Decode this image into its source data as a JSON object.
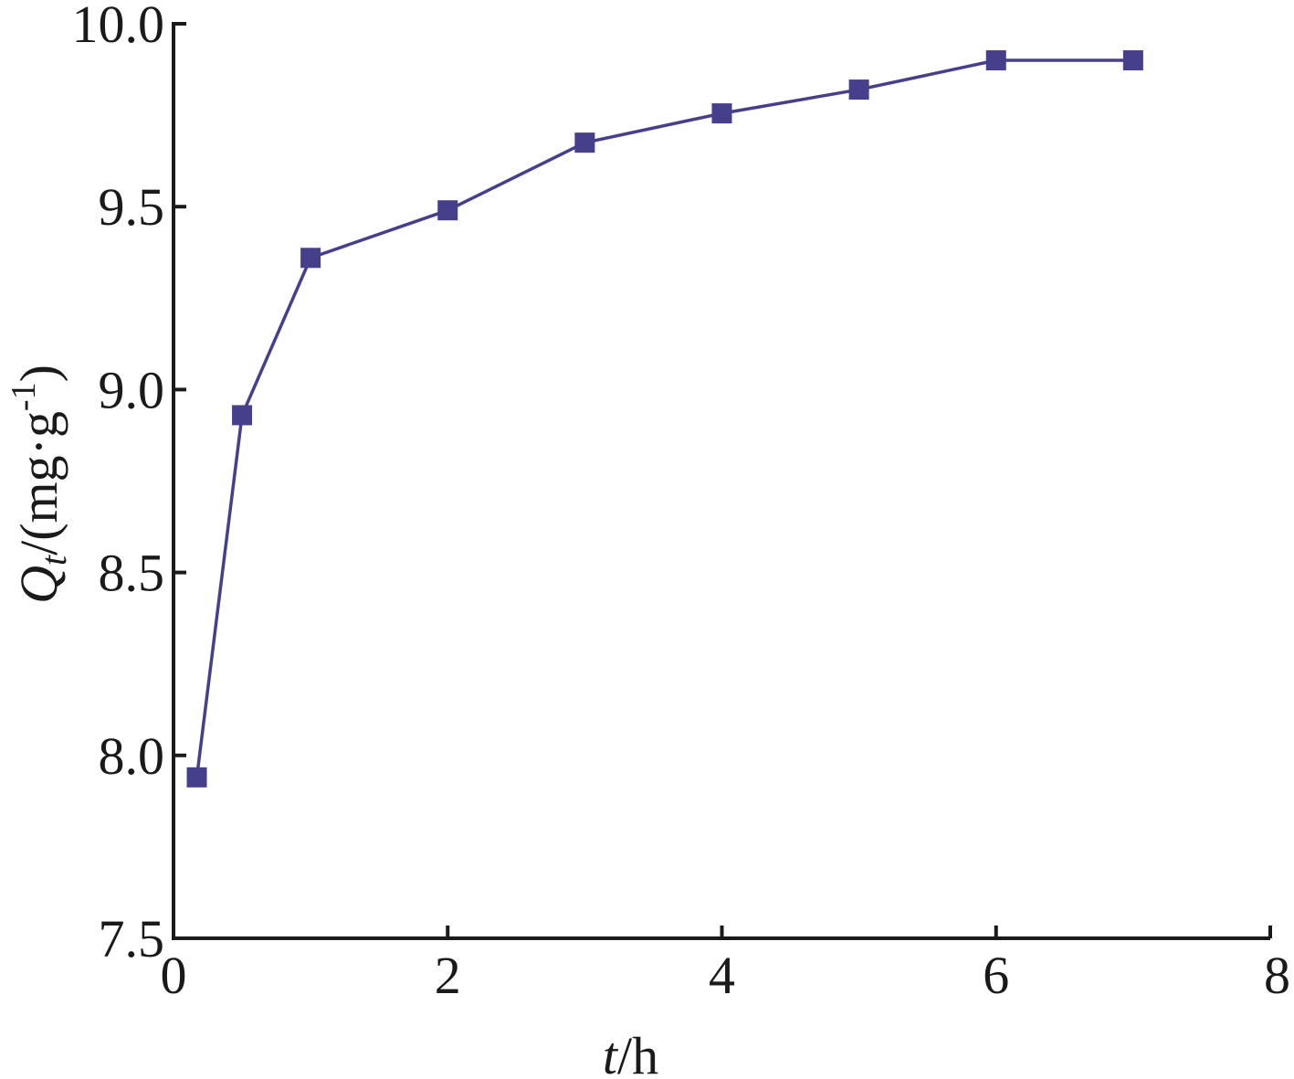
{
  "chart_data": {
    "type": "line",
    "xlabel": {
      "var": "t",
      "unit": "/h"
    },
    "ylabel": {
      "var": "Q",
      "sub": "t",
      "unit_pre": "/(mg·g",
      "sup": "-1",
      "unit_post": ")"
    },
    "xlim": [
      0,
      8
    ],
    "ylim": [
      7.5,
      10.0
    ],
    "xticks": [
      0,
      2,
      4,
      6,
      8
    ],
    "xtick_labels": [
      "0",
      "2",
      "4",
      "6",
      "8"
    ],
    "yticks": [
      7.5,
      8.0,
      8.5,
      9.0,
      9.5,
      10.0
    ],
    "ytick_labels": [
      "7.5",
      "8.0",
      "8.5",
      "9.0",
      "9.5",
      "10.0"
    ],
    "grid": false,
    "series": [
      {
        "marker": "square",
        "color": "#463f8c",
        "x": [
          0.17,
          0.5,
          1,
          2,
          3,
          4,
          5,
          6,
          7
        ],
        "y": [
          7.94,
          8.93,
          9.36,
          9.49,
          9.675,
          9.755,
          9.82,
          9.9,
          9.9
        ]
      }
    ]
  }
}
